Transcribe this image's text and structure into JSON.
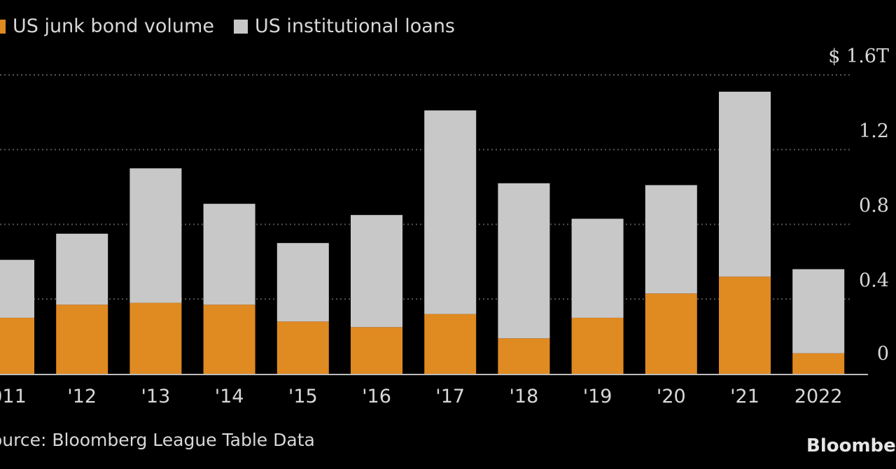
{
  "legend": [
    {
      "label": "US junk bond volume",
      "color": "#e08a22"
    },
    {
      "label": "US institutional loans",
      "color": "#c8c8c8"
    }
  ],
  "source": "ource: Bloomberg League Table Data",
  "brand": "Bloomber",
  "chart_data": {
    "type": "bar",
    "stacked": true,
    "categories": [
      "011",
      "'12",
      "'13",
      "'14",
      "'15",
      "'16",
      "'17",
      "'18",
      "'19",
      "'20",
      "'21",
      "2022"
    ],
    "series": [
      {
        "name": "US junk bond volume",
        "color": "#e08a22",
        "values": [
          0.3,
          0.37,
          0.38,
          0.37,
          0.28,
          0.25,
          0.32,
          0.19,
          0.3,
          0.43,
          0.52,
          0.11
        ]
      },
      {
        "name": "US institutional loans",
        "color": "#c8c8c8",
        "values": [
          0.31,
          0.38,
          0.72,
          0.54,
          0.42,
          0.6,
          1.09,
          0.83,
          0.53,
          0.58,
          0.99,
          0.45
        ]
      }
    ],
    "yticks": [
      "0",
      "0.4",
      "0.8",
      "1.2",
      "$ 1.6T"
    ],
    "ytick_values": [
      0,
      0.4,
      0.8,
      1.2,
      1.6
    ],
    "ylim": [
      0,
      1.6
    ],
    "grid": true,
    "legend_position": "top-left"
  }
}
